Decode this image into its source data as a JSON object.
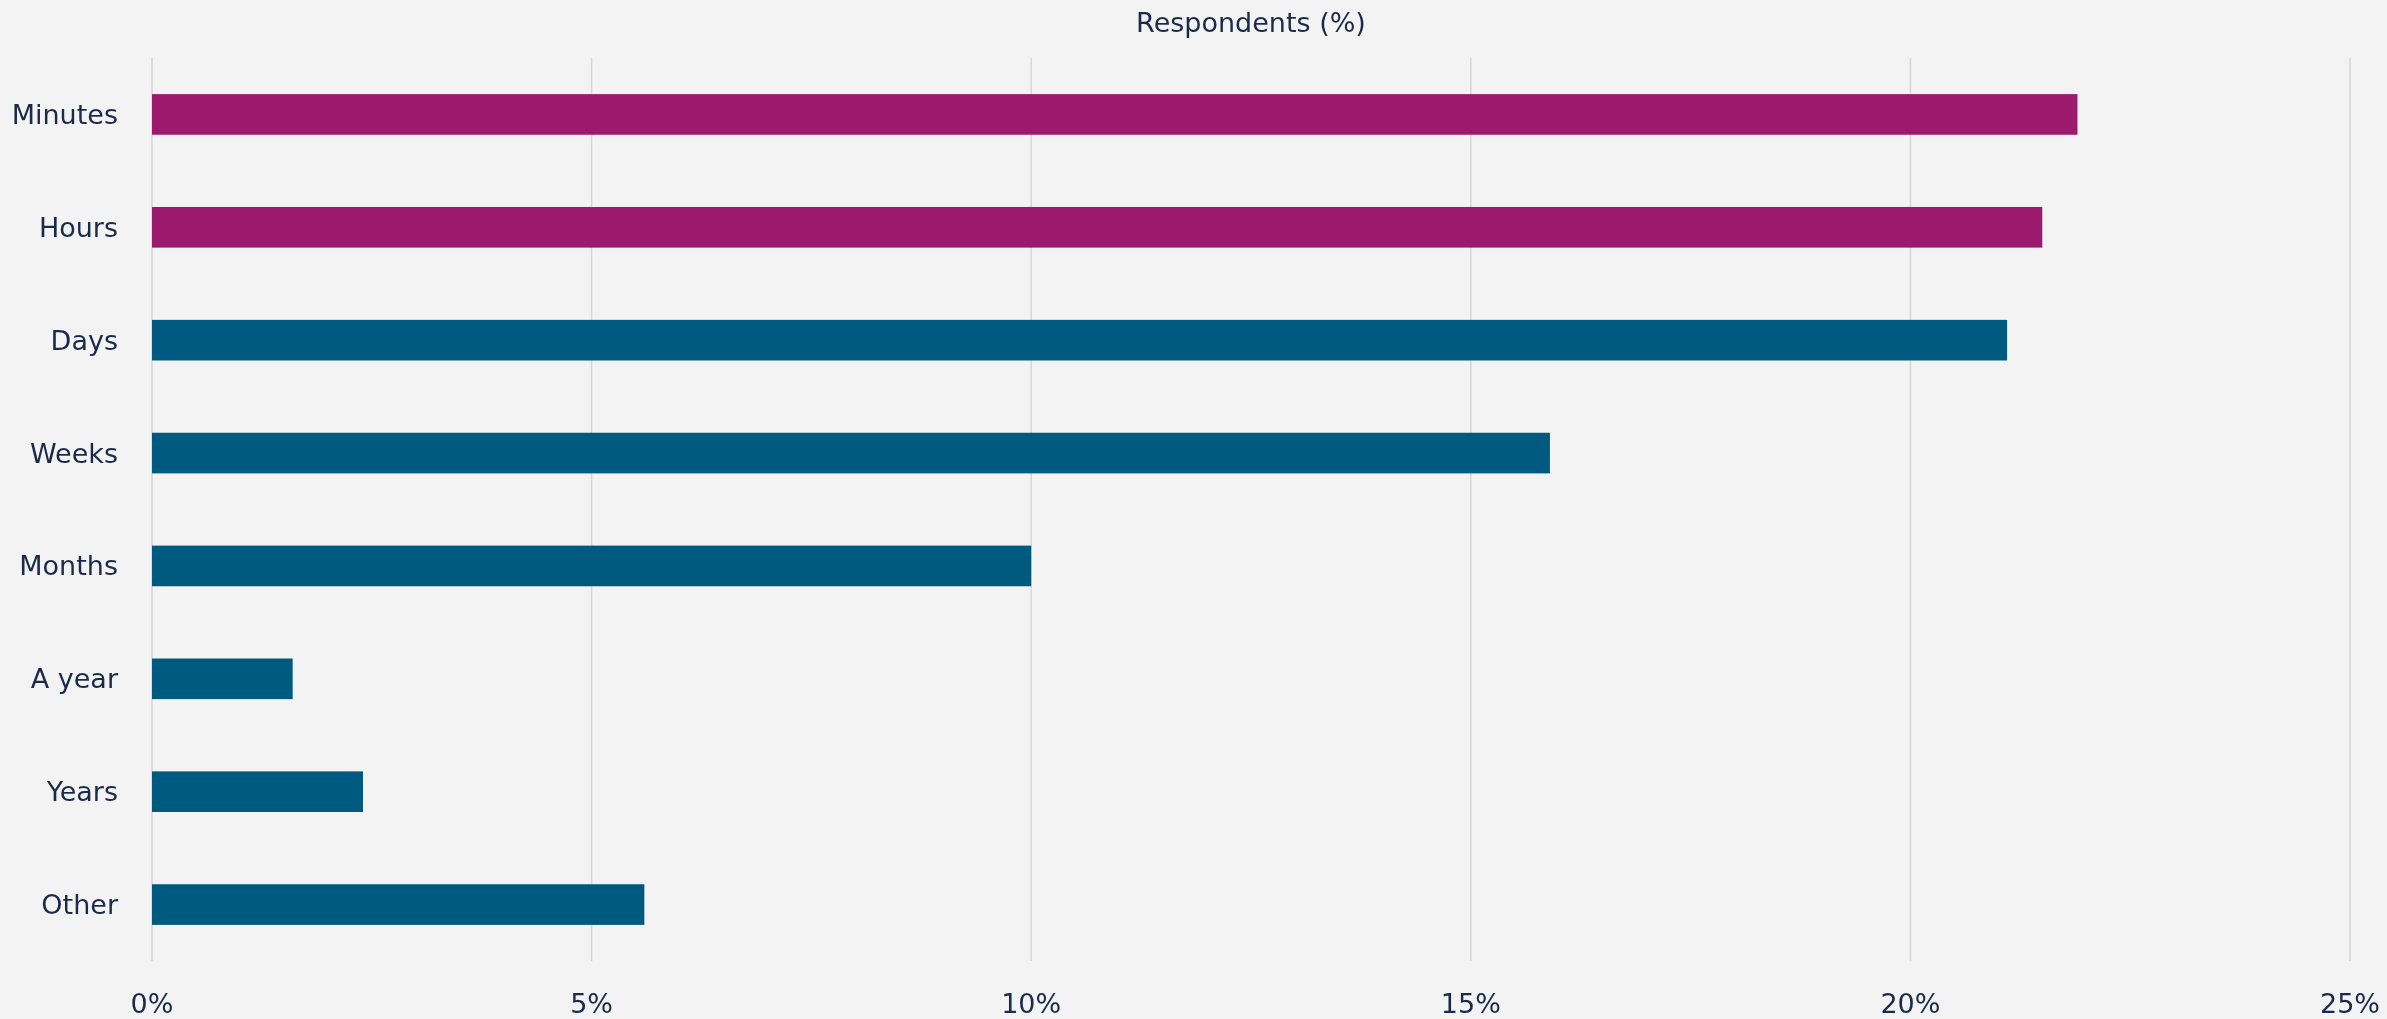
{
  "chart_data": {
    "type": "bar",
    "orientation": "horizontal",
    "xlabel": "Respondents (%)",
    "categories": [
      "Minutes",
      "Hours",
      "Days",
      "Weeks",
      "Months",
      "A year",
      "Years",
      "Other"
    ],
    "values": [
      21.9,
      21.5,
      21.1,
      15.9,
      10.0,
      1.6,
      2.4,
      5.6
    ],
    "colors": [
      "#9b1a6e",
      "#9b1a6e",
      "#005a80",
      "#005a80",
      "#005a80",
      "#005a80",
      "#005a80",
      "#005a80"
    ],
    "xlim": [
      0,
      25
    ],
    "xticks": [
      {
        "value": 0,
        "label": "0%"
      },
      {
        "value": 5,
        "label": "5%"
      },
      {
        "value": 10,
        "label": "10%"
      },
      {
        "value": 15,
        "label": "15%"
      },
      {
        "value": 20,
        "label": "20%"
      },
      {
        "value": 25,
        "label": "25%"
      }
    ],
    "grid": "x"
  }
}
